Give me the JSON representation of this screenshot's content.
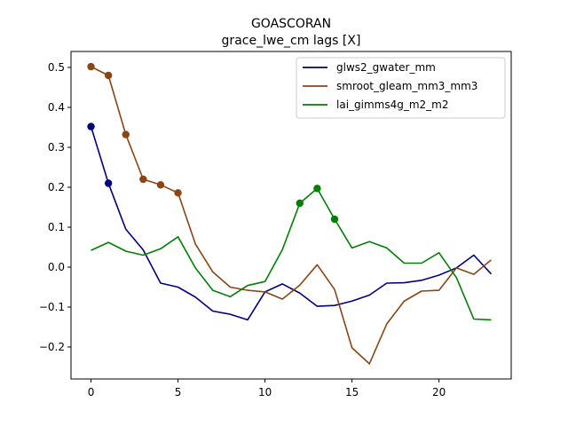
{
  "chart_data": {
    "type": "line",
    "title": "GOASCORAN",
    "subtitle": "grace_lwe_cm lags [X]",
    "xlabel": "",
    "ylabel": "",
    "xlim": [
      -1.15,
      24.15
    ],
    "ylim": [
      -0.28,
      0.54
    ],
    "xticks": [
      0,
      5,
      10,
      15,
      20
    ],
    "yticks": [
      -0.2,
      -0.1,
      0.0,
      0.1,
      0.2,
      0.3,
      0.4,
      0.5
    ],
    "ytick_labels": [
      "−0.2",
      "−0.1",
      "0.0",
      "0.1",
      "0.2",
      "0.3",
      "0.4",
      "0.5"
    ],
    "x": [
      0,
      1,
      2,
      3,
      4,
      5,
      6,
      7,
      8,
      9,
      10,
      11,
      12,
      13,
      14,
      15,
      16,
      17,
      18,
      19,
      20,
      21,
      22,
      23
    ],
    "legend_position": "top-right",
    "grid": false,
    "series": [
      {
        "name": "glws2_gwater_mm",
        "color": "#000080",
        "values": [
          0.352,
          0.21,
          0.095,
          0.043,
          -0.04,
          -0.05,
          -0.075,
          -0.11,
          -0.118,
          -0.132,
          -0.062,
          -0.042,
          -0.065,
          -0.098,
          -0.096,
          -0.085,
          -0.07,
          -0.04,
          -0.039,
          -0.033,
          -0.02,
          -0.002,
          0.03,
          -0.017
        ],
        "markers": [
          0,
          1
        ]
      },
      {
        "name": "smroot_gleam_mm3_mm3",
        "color": "#8B4513",
        "values": [
          0.502,
          0.48,
          0.332,
          0.22,
          0.206,
          0.186,
          0.058,
          -0.012,
          -0.05,
          -0.058,
          -0.062,
          -0.08,
          -0.045,
          0.006,
          -0.056,
          -0.202,
          -0.242,
          -0.142,
          -0.085,
          -0.06,
          -0.058,
          -0.002,
          -0.018,
          0.018
        ],
        "markers": [
          0,
          1,
          2,
          3,
          4,
          5
        ]
      },
      {
        "name": "lai_gimms4g_m2_m2",
        "color": "#008000",
        "values": [
          0.042,
          0.062,
          0.04,
          0.03,
          0.046,
          0.076,
          -0.002,
          -0.058,
          -0.074,
          -0.046,
          -0.036,
          0.044,
          0.16,
          0.197,
          0.12,
          0.048,
          0.064,
          0.048,
          0.01,
          0.01,
          0.036,
          -0.026,
          -0.13,
          -0.132
        ],
        "markers": [
          12,
          13,
          14
        ]
      }
    ]
  }
}
